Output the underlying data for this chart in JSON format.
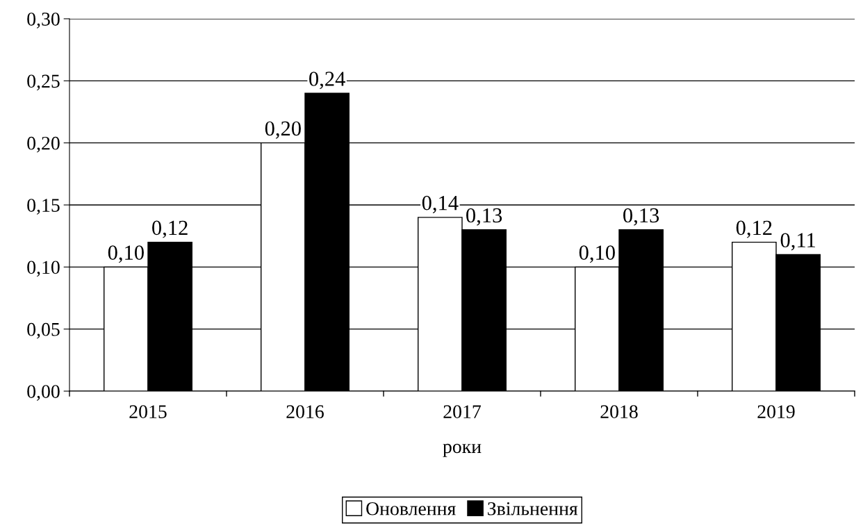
{
  "chart_data": {
    "type": "bar",
    "xlabel": "роки",
    "categories": [
      "2015",
      "2016",
      "2017",
      "2018",
      "2019"
    ],
    "series": [
      {
        "name": "Оновлення",
        "color": "#ffffff",
        "values": [
          0.1,
          0.2,
          0.14,
          0.1,
          0.12
        ],
        "value_labels": [
          "0,10",
          "0,20",
          "0,14",
          "0,10",
          "0,12"
        ]
      },
      {
        "name": "Звільнення",
        "color": "#000000",
        "values": [
          0.12,
          0.24,
          0.13,
          0.13,
          0.11
        ],
        "value_labels": [
          "0,12",
          "0,24",
          "0,13",
          "0,13",
          "0,11"
        ]
      }
    ],
    "ylim": [
      0,
      0.3
    ],
    "yticks": [
      {
        "value": 0,
        "label": "0,00"
      },
      {
        "value": 0.05,
        "label": "0,05"
      },
      {
        "value": 0.1,
        "label": "0,10"
      },
      {
        "value": 0.15,
        "label": "0,15"
      },
      {
        "value": 0.2,
        "label": "0,20"
      },
      {
        "value": 0.25,
        "label": "0,25"
      },
      {
        "value": 0.3,
        "label": "0,30"
      }
    ],
    "grid": "y",
    "legend": "bottom"
  }
}
